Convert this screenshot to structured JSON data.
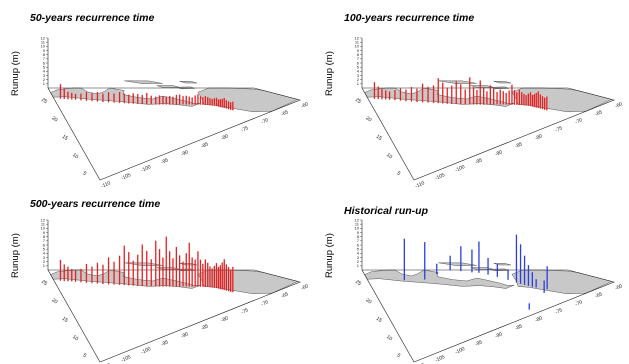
{
  "chart_data": [
    {
      "type": "bar",
      "title": "50-years recurrence time",
      "ylabel": "Runup (m)",
      "z_ticks": [
        "1",
        "2",
        "3",
        "4",
        "5",
        "6",
        "7",
        "8",
        "9",
        "10",
        "11",
        "12"
      ],
      "lon_ticks": [
        "-110",
        "-105",
        "-100",
        "-95",
        "-90",
        "-85",
        "-80",
        "-75",
        "-70",
        "-65",
        "-60"
      ],
      "lat_ticks": [
        "5",
        "10",
        "15",
        "20",
        "25"
      ],
      "bar_color": "#e52020",
      "values": [
        3.5,
        2.5,
        1.8,
        1.6,
        1.4,
        1.6,
        2.1,
        1.9,
        2.3,
        2.0,
        2.4,
        2.2,
        2.6,
        2.3,
        2.1,
        2.5,
        2.4,
        2.2,
        2.7,
        2.1,
        1.9,
        2.2,
        2.0,
        1.8,
        2.1,
        1.9,
        2.3,
        2.4,
        2.0,
        2.1,
        1.9,
        1.7,
        2.2,
        2.5,
        2.0,
        1.8,
        2.1,
        1.9,
        1.7,
        1.6,
        1.8,
        2.0,
        1.7,
        1.9,
        2.1,
        2.4,
        2.0,
        1.9,
        1.8,
        2.1
      ]
    },
    {
      "type": "bar",
      "title": "100-years recurrence time",
      "ylabel": "Runup (m)",
      "z_ticks": [
        "1",
        "2",
        "3",
        "4",
        "5",
        "6",
        "7",
        "8",
        "9",
        "10",
        "11",
        "12"
      ],
      "lon_ticks": [
        "-110",
        "-105",
        "-100",
        "-95",
        "-90",
        "-85",
        "-80",
        "-75",
        "-70",
        "-65",
        "-60"
      ],
      "lat_ticks": [
        "5",
        "10",
        "15",
        "20",
        "25"
      ],
      "bar_color": "#e52020",
      "values": [
        4.0,
        3.0,
        2.5,
        2.2,
        2.0,
        2.4,
        3.0,
        2.8,
        3.5,
        3.2,
        4.5,
        3.8,
        4.2,
        6.0,
        5.0,
        3.9,
        4.4,
        5.5,
        4.8,
        3.6,
        6.5,
        4.2,
        3.5,
        5.8,
        4.0,
        3.2,
        4.6,
        3.8,
        3.0,
        3.6,
        3.2,
        2.8,
        3.4,
        4.8,
        3.5,
        3.0,
        3.6,
        3.1,
        2.7,
        2.5,
        2.9,
        3.3,
        2.8,
        3.1,
        3.5,
        4.0,
        3.4,
        3.1,
        2.9,
        3.3
      ]
    },
    {
      "type": "bar",
      "title": "500-years recurrence time",
      "ylabel": "Runup (m)",
      "z_ticks": [
        "1",
        "2",
        "3",
        "4",
        "5",
        "6",
        "7",
        "8",
        "9",
        "10",
        "11",
        "12"
      ],
      "lon_ticks": [
        "-110",
        "-105",
        "-100",
        "-95",
        "-90",
        "-85",
        "-80",
        "-75",
        "-70",
        "-65",
        "-60"
      ],
      "lat_ticks": [
        "5",
        "10",
        "15",
        "20",
        "25"
      ],
      "bar_color": "#e52020",
      "values": [
        5.0,
        4.0,
        3.5,
        3.0,
        2.8,
        3.2,
        4.5,
        4.0,
        5.0,
        4.6,
        6.5,
        5.5,
        7.0,
        9.5,
        8.0,
        6.0,
        7.5,
        10.0,
        8.5,
        6.5,
        11.0,
        9.0,
        7.0,
        12.0,
        8.5,
        6.8,
        9.5,
        7.5,
        6.0,
        8.0,
        10.5,
        7.0,
        6.5,
        8.5,
        6.5,
        5.5,
        6.6,
        5.8,
        5.0,
        4.6,
        5.3,
        6.0,
        5.2,
        5.7,
        6.5,
        7.4,
        6.3,
        5.8,
        5.3,
        6.1
      ]
    },
    {
      "type": "bar",
      "title": "Historical run-up",
      "ylabel": "Runup (m)",
      "z_ticks": [
        "1",
        "2",
        "3",
        "4",
        "5",
        "6",
        "7",
        "8",
        "9",
        "10",
        "11",
        "12"
      ],
      "lon_ticks": [
        "-110",
        "-105",
        "-100",
        "-95",
        "-90",
        "-85",
        "-80",
        "-75",
        "-70",
        "-65",
        "-60"
      ],
      "lat_ticks": [
        "5",
        "10",
        "15",
        "20",
        "25"
      ],
      "bar_color": "#2a3fdc",
      "values": [
        0,
        0,
        0,
        0,
        0,
        10.0,
        0,
        0,
        0,
        9.0,
        0,
        0,
        0,
        2.5,
        0,
        0,
        0,
        0,
        3.5,
        0,
        0,
        6.0,
        0,
        0,
        5.5,
        0,
        7.5,
        0,
        0,
        4.0,
        0,
        0,
        3.0,
        0,
        0,
        2.5,
        0,
        11.5,
        9.5,
        7.0,
        5.0,
        3.5,
        2.0,
        0,
        0,
        5.5,
        3.0,
        0,
        0,
        1.5
      ]
    }
  ]
}
